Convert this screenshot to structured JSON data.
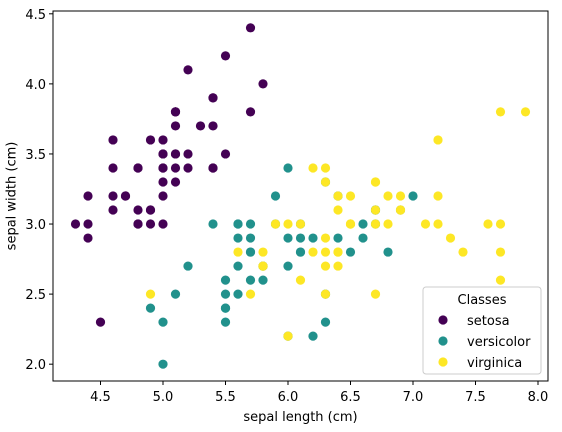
{
  "chart_data": {
    "type": "scatter",
    "xlabel": "sepal length (cm)",
    "ylabel": "sepal width (cm)",
    "xlim": [
      4.12,
      8.08
    ],
    "ylim": [
      1.88,
      4.52
    ],
    "xticks": [
      4.5,
      5.0,
      5.5,
      6.0,
      6.5,
      7.0,
      7.5,
      8.0
    ],
    "yticks": [
      2.0,
      2.5,
      3.0,
      3.5,
      4.0,
      4.5
    ],
    "xtick_labels": [
      "4.5",
      "5.0",
      "5.5",
      "6.0",
      "6.5",
      "7.0",
      "7.5",
      "8.0"
    ],
    "ytick_labels": [
      "2.0",
      "2.5",
      "3.0",
      "3.5",
      "4.0",
      "4.5"
    ],
    "grid": false,
    "legend": {
      "title": "Classes",
      "placement": "lower-right"
    },
    "series": [
      {
        "name": "setosa",
        "color": "#440154",
        "points": [
          [
            5.1,
            3.5
          ],
          [
            4.9,
            3.0
          ],
          [
            4.7,
            3.2
          ],
          [
            4.6,
            3.1
          ],
          [
            5.0,
            3.6
          ],
          [
            5.4,
            3.9
          ],
          [
            4.6,
            3.4
          ],
          [
            5.0,
            3.4
          ],
          [
            4.4,
            2.9
          ],
          [
            4.9,
            3.1
          ],
          [
            5.4,
            3.7
          ],
          [
            4.8,
            3.4
          ],
          [
            4.8,
            3.0
          ],
          [
            4.3,
            3.0
          ],
          [
            5.8,
            4.0
          ],
          [
            5.7,
            4.4
          ],
          [
            5.4,
            3.9
          ],
          [
            5.1,
            3.5
          ],
          [
            5.7,
            3.8
          ],
          [
            5.1,
            3.8
          ],
          [
            5.4,
            3.4
          ],
          [
            5.1,
            3.7
          ],
          [
            4.6,
            3.6
          ],
          [
            5.1,
            3.3
          ],
          [
            4.8,
            3.4
          ],
          [
            5.0,
            3.0
          ],
          [
            5.0,
            3.4
          ],
          [
            5.2,
            3.5
          ],
          [
            5.2,
            3.4
          ],
          [
            4.7,
            3.2
          ],
          [
            4.8,
            3.1
          ],
          [
            5.4,
            3.4
          ],
          [
            5.2,
            4.1
          ],
          [
            5.5,
            4.2
          ],
          [
            4.9,
            3.1
          ],
          [
            5.0,
            3.2
          ],
          [
            5.5,
            3.5
          ],
          [
            4.9,
            3.6
          ],
          [
            4.4,
            3.0
          ],
          [
            5.1,
            3.4
          ],
          [
            5.0,
            3.5
          ],
          [
            4.5,
            2.3
          ],
          [
            4.4,
            3.2
          ],
          [
            5.0,
            3.5
          ],
          [
            5.1,
            3.8
          ],
          [
            4.8,
            3.0
          ],
          [
            5.1,
            3.8
          ],
          [
            4.6,
            3.2
          ],
          [
            5.3,
            3.7
          ],
          [
            5.0,
            3.3
          ]
        ]
      },
      {
        "name": "versicolor",
        "color": "#21918c",
        "points": [
          [
            7.0,
            3.2
          ],
          [
            6.4,
            3.2
          ],
          [
            6.9,
            3.1
          ],
          [
            5.5,
            2.3
          ],
          [
            6.5,
            2.8
          ],
          [
            5.7,
            2.8
          ],
          [
            6.3,
            3.3
          ],
          [
            4.9,
            2.4
          ],
          [
            6.6,
            2.9
          ],
          [
            5.2,
            2.7
          ],
          [
            5.0,
            2.0
          ],
          [
            5.9,
            3.0
          ],
          [
            6.0,
            2.2
          ],
          [
            6.1,
            2.9
          ],
          [
            5.6,
            2.9
          ],
          [
            6.7,
            3.1
          ],
          [
            5.6,
            3.0
          ],
          [
            5.8,
            2.7
          ],
          [
            6.2,
            2.2
          ],
          [
            5.6,
            2.5
          ],
          [
            5.9,
            3.2
          ],
          [
            6.1,
            2.8
          ],
          [
            6.3,
            2.5
          ],
          [
            6.1,
            2.8
          ],
          [
            6.4,
            2.9
          ],
          [
            6.6,
            3.0
          ],
          [
            6.8,
            2.8
          ],
          [
            6.7,
            3.0
          ],
          [
            6.0,
            2.9
          ],
          [
            5.7,
            2.6
          ],
          [
            5.5,
            2.4
          ],
          [
            5.5,
            2.4
          ],
          [
            5.8,
            2.7
          ],
          [
            6.0,
            2.7
          ],
          [
            5.4,
            3.0
          ],
          [
            6.0,
            3.4
          ],
          [
            6.7,
            3.1
          ],
          [
            6.3,
            2.3
          ],
          [
            5.6,
            3.0
          ],
          [
            5.5,
            2.5
          ],
          [
            5.5,
            2.6
          ],
          [
            6.1,
            3.0
          ],
          [
            5.8,
            2.6
          ],
          [
            5.0,
            2.3
          ],
          [
            5.6,
            2.7
          ],
          [
            5.7,
            3.0
          ],
          [
            5.7,
            2.9
          ],
          [
            6.2,
            2.9
          ],
          [
            5.1,
            2.5
          ],
          [
            5.7,
            2.8
          ]
        ]
      },
      {
        "name": "virginica",
        "color": "#fde725",
        "points": [
          [
            6.3,
            3.3
          ],
          [
            5.8,
            2.7
          ],
          [
            7.1,
            3.0
          ],
          [
            6.3,
            2.9
          ],
          [
            6.5,
            3.0
          ],
          [
            7.6,
            3.0
          ],
          [
            4.9,
            2.5
          ],
          [
            7.3,
            2.9
          ],
          [
            6.7,
            2.5
          ],
          [
            7.2,
            3.6
          ],
          [
            6.5,
            3.2
          ],
          [
            6.4,
            2.7
          ],
          [
            6.8,
            3.0
          ],
          [
            5.7,
            2.5
          ],
          [
            5.8,
            2.8
          ],
          [
            6.4,
            3.2
          ],
          [
            6.5,
            3.0
          ],
          [
            7.7,
            3.8
          ],
          [
            7.7,
            2.6
          ],
          [
            6.0,
            2.2
          ],
          [
            6.9,
            3.2
          ],
          [
            5.6,
            2.8
          ],
          [
            7.7,
            2.8
          ],
          [
            6.3,
            2.7
          ],
          [
            6.7,
            3.3
          ],
          [
            7.2,
            3.2
          ],
          [
            6.2,
            2.8
          ],
          [
            6.1,
            3.0
          ],
          [
            6.4,
            2.8
          ],
          [
            7.2,
            3.0
          ],
          [
            7.4,
            2.8
          ],
          [
            7.9,
            3.8
          ],
          [
            6.4,
            2.8
          ],
          [
            6.3,
            2.8
          ],
          [
            6.1,
            2.6
          ],
          [
            7.7,
            3.0
          ],
          [
            6.3,
            3.4
          ],
          [
            6.4,
            3.1
          ],
          [
            6.0,
            3.0
          ],
          [
            6.9,
            3.1
          ],
          [
            6.7,
            3.1
          ],
          [
            6.9,
            3.1
          ],
          [
            5.8,
            2.7
          ],
          [
            6.8,
            3.2
          ],
          [
            6.7,
            3.3
          ],
          [
            6.7,
            3.0
          ],
          [
            6.3,
            2.5
          ],
          [
            6.5,
            3.0
          ],
          [
            6.2,
            3.4
          ],
          [
            5.9,
            3.0
          ]
        ]
      }
    ]
  }
}
